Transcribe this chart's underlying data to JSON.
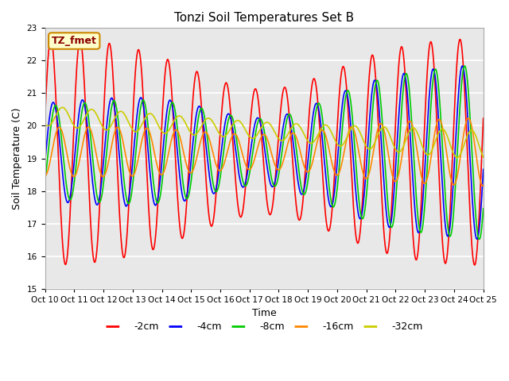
{
  "title": "Tonzi Soil Temperatures Set B",
  "xlabel": "Time",
  "ylabel": "Soil Temperature (C)",
  "ylim": [
    15.0,
    23.0
  ],
  "yticks": [
    15.0,
    16.0,
    17.0,
    18.0,
    19.0,
    20.0,
    21.0,
    22.0,
    23.0
  ],
  "series": [
    {
      "label": "-2cm",
      "color": "#ff0000"
    },
    {
      "label": "-4cm",
      "color": "#0000ff"
    },
    {
      "label": "-8cm",
      "color": "#00cc00"
    },
    {
      "label": "-16cm",
      "color": "#ff8800"
    },
    {
      "label": "-32cm",
      "color": "#cccc00"
    }
  ],
  "xtick_labels": [
    "Oct 10",
    "Oct 11",
    "Oct 12",
    "Oct 13",
    "Oct 14",
    "Oct 15",
    "Oct 16",
    "Oct 17",
    "Oct 18",
    "Oct 19",
    "Oct 20",
    "Oct 21",
    "Oct 22",
    "Oct 23",
    "Oct 24",
    "Oct 25"
  ],
  "grid_color": "#d8d8d8",
  "bg_color": "#e8e8e8",
  "annotation_text": "TZ_fmet",
  "annotation_bg": "#ffffcc",
  "annotation_border": "#cc8800"
}
